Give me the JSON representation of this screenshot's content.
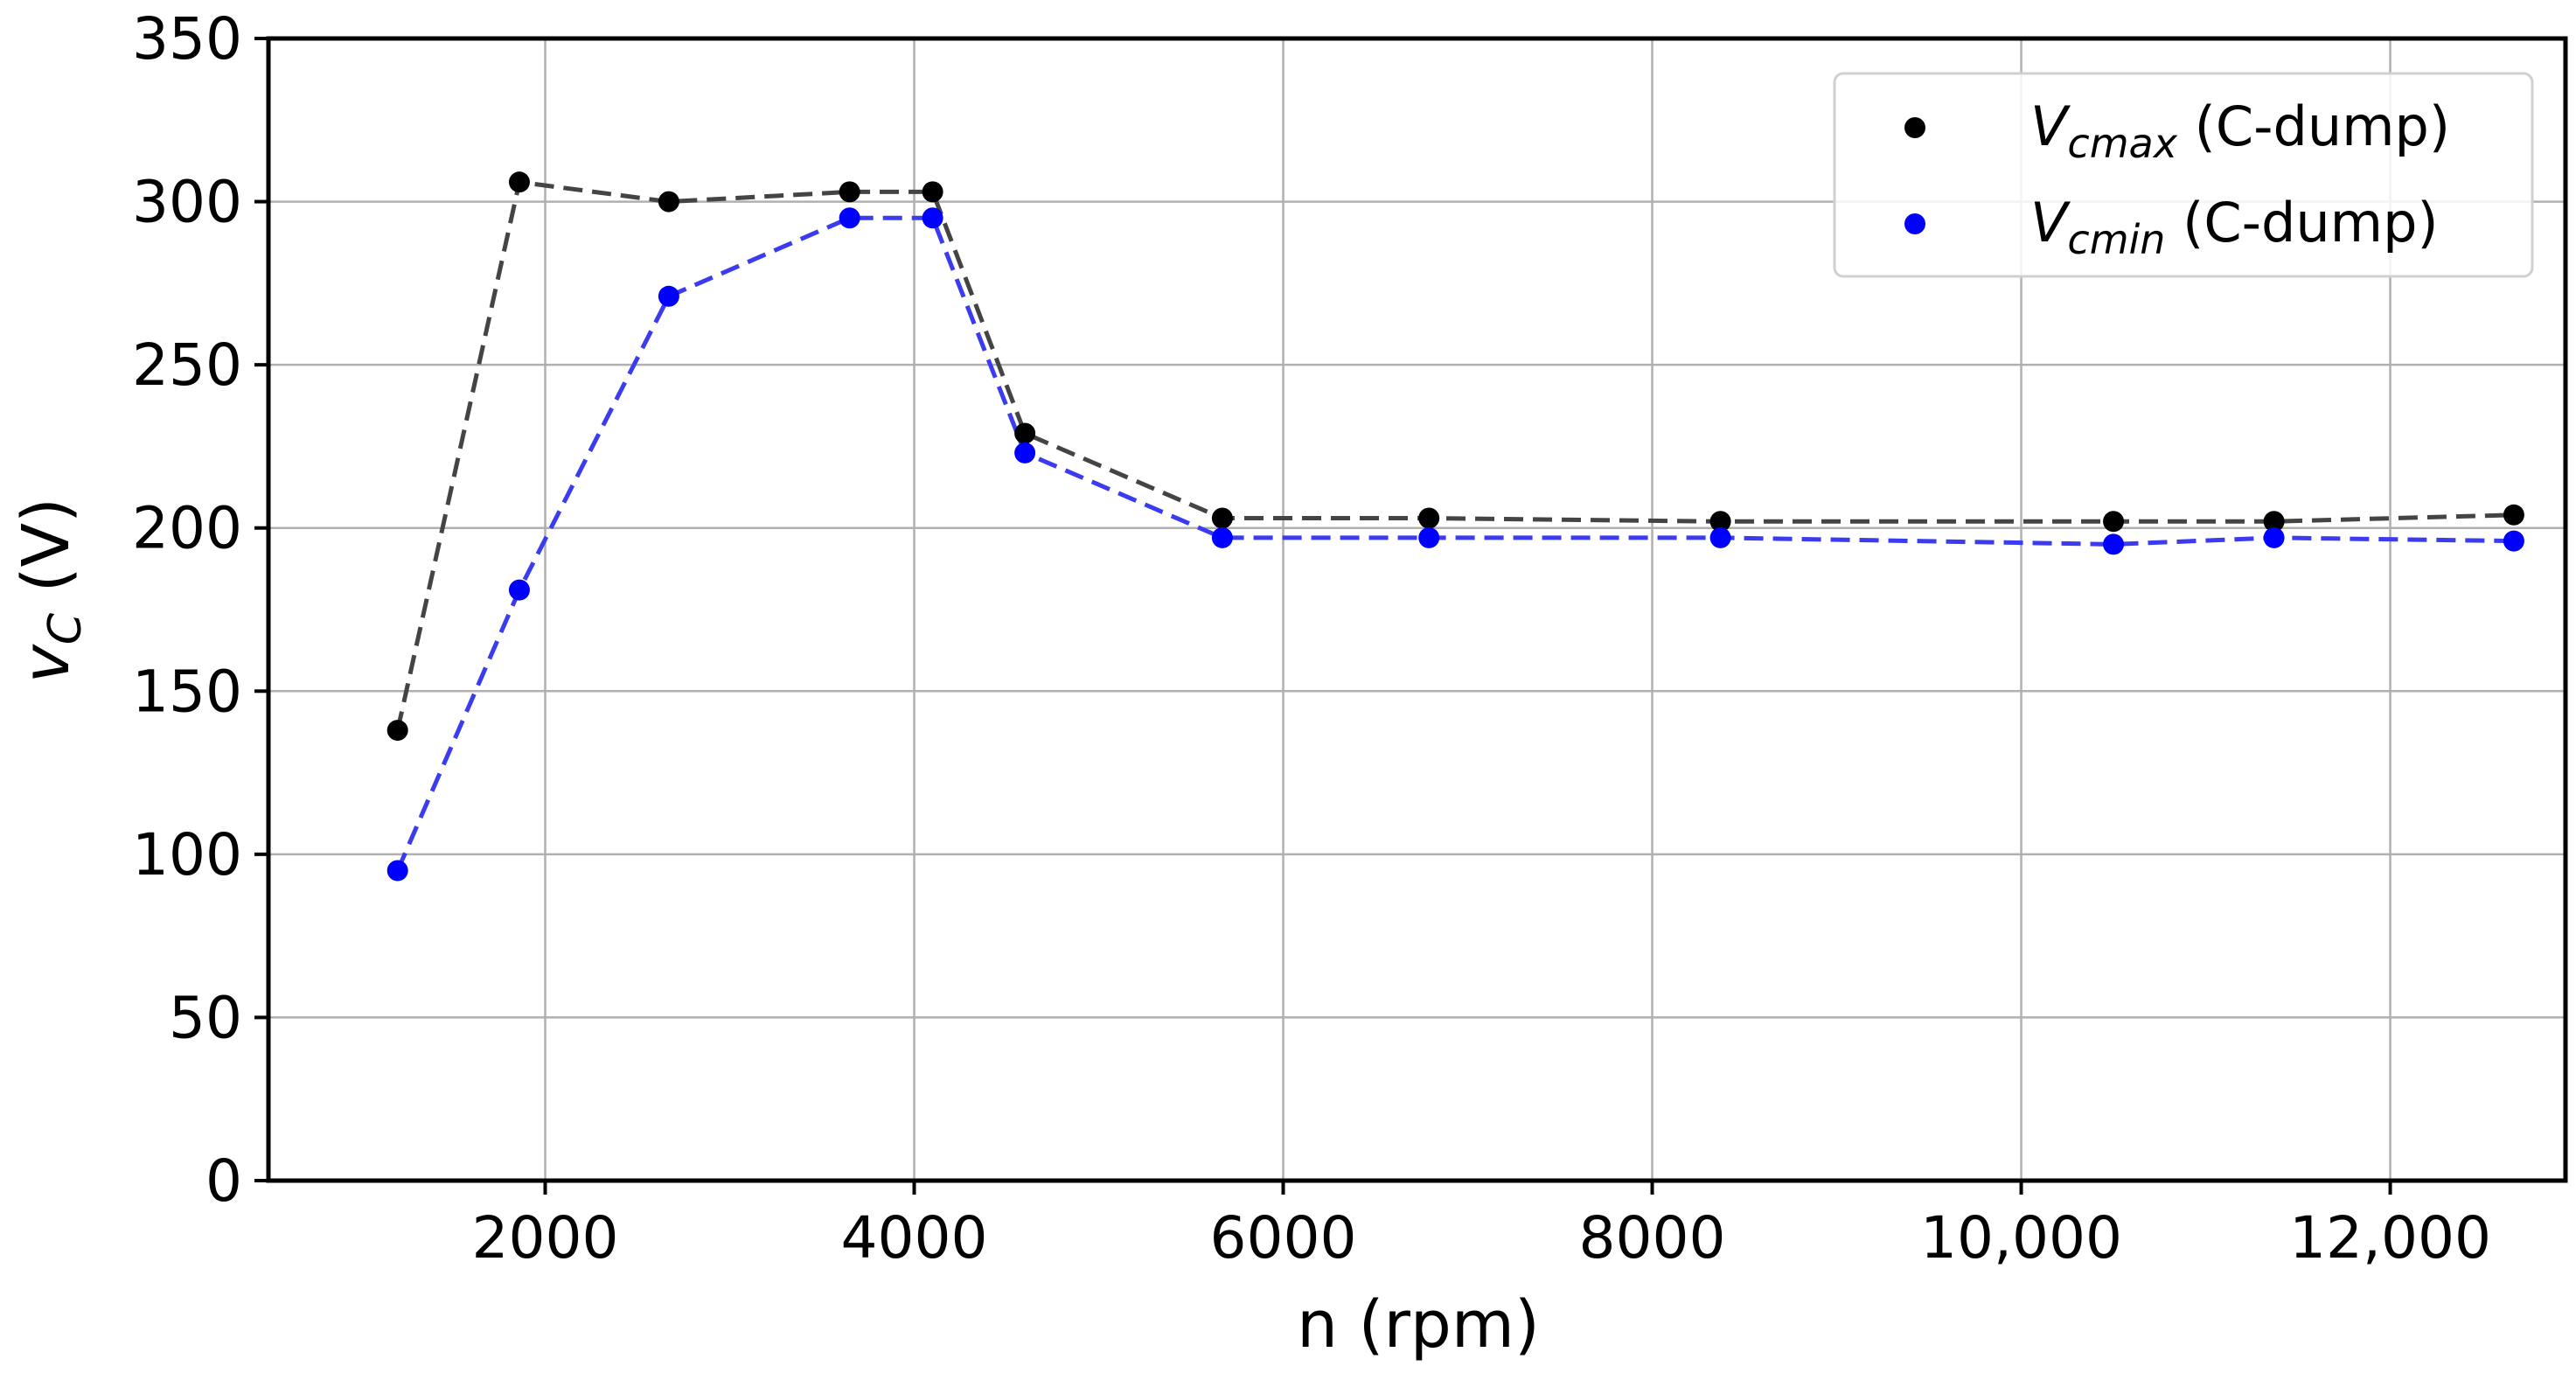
{
  "chart_data": {
    "type": "line",
    "xlabel": "n (rpm)",
    "ylabel": "v",
    "ylabel_sub": "C",
    "ylabel_unit": "(V)",
    "xlim": [
      500,
      12950
    ],
    "ylim": [
      0,
      350
    ],
    "xticks": [
      2000,
      4000,
      6000,
      8000,
      10000,
      12000
    ],
    "xtick_labels": [
      "2000",
      "4000",
      "6000",
      "8000",
      "10,000",
      "12,000"
    ],
    "yticks": [
      0,
      50,
      100,
      150,
      200,
      250,
      300,
      350
    ],
    "ytick_labels": [
      "0",
      "50",
      "100",
      "150",
      "200",
      "250",
      "300",
      "350"
    ],
    "grid": true,
    "legend_position": "top-right",
    "x": [
      1200,
      1860,
      2670,
      3650,
      4100,
      4600,
      5670,
      6790,
      8370,
      10500,
      11370,
      12670
    ],
    "series": [
      {
        "name": "V",
        "name_sub": "cmax",
        "name_suffix": " (C-dump)",
        "marker_color": "#000000",
        "line_color": "#444444",
        "line_style": "dashed",
        "values": [
          138,
          306,
          300,
          303,
          303,
          229,
          203,
          203,
          202,
          202,
          202,
          204
        ]
      },
      {
        "name": "V",
        "name_sub": "cmin",
        "name_suffix": " (C-dump)",
        "marker_color": "#0000ff",
        "line_color": "#3b3bf0",
        "line_style": "dashed",
        "values": [
          95,
          181,
          271,
          295,
          295,
          223,
          197,
          197,
          197,
          195,
          197,
          196
        ]
      }
    ]
  }
}
